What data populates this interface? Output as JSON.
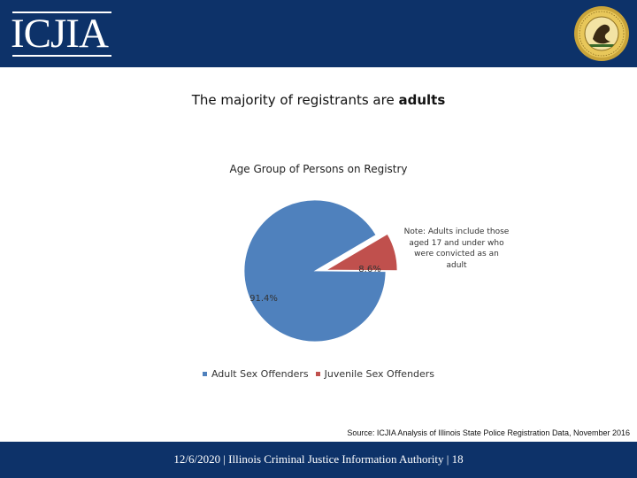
{
  "header": {
    "logo_text": "ICJIA",
    "seal_icon": "illinois-state-seal-icon",
    "background_color": "#0d3269"
  },
  "slide": {
    "title_prefix": "The majority of registrants are ",
    "title_emphasis": "adults"
  },
  "chart_data": {
    "type": "pie",
    "title": "Age Group of Persons on Registry",
    "categories": [
      "Adult Sex Offenders",
      "Juvenile Sex Offenders"
    ],
    "values": [
      91.4,
      8.6
    ],
    "labels": [
      "91.4%",
      "8.6%"
    ],
    "colors": [
      "#4f81bd",
      "#c0504d"
    ],
    "legend_position": "bottom",
    "annotation": "Note: Adults include those aged 17 and under who were convicted as an adult"
  },
  "source": "Source: ICJIA Analysis of Illinois State Police Registration Data, November 2016",
  "footer": {
    "text": "12/6/2020 | Illinois Criminal Justice Information Authority | 18"
  }
}
